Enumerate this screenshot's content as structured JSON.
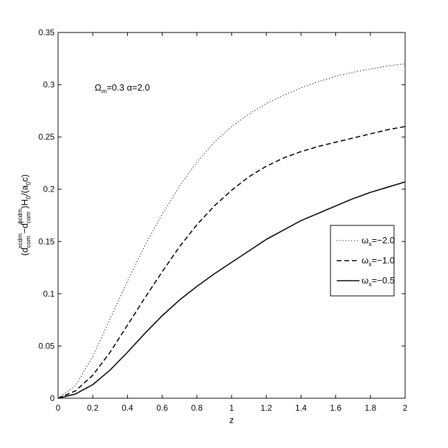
{
  "chart_data": {
    "type": "line",
    "xlabel": "z",
    "ylabel": {
      "parts": [
        {
          "text": "(d",
          "style": "normal"
        },
        {
          "text": "com",
          "style": "sub"
        },
        {
          "text": "xcdm",
          "style": "sup"
        },
        {
          "text": "−d",
          "style": "normal"
        },
        {
          "text": "com",
          "style": "sub"
        },
        {
          "text": "ϕcdm",
          "style": "sup"
        },
        {
          "text": ")H",
          "style": "normal"
        },
        {
          "text": "0",
          "style": "sub"
        },
        {
          "text": "/(a",
          "style": "normal"
        },
        {
          "text": "0",
          "style": "sub"
        },
        {
          "text": "c)",
          "style": "normal"
        }
      ]
    },
    "annotation": {
      "parts": [
        {
          "text": "Ω",
          "style": "normal"
        },
        {
          "text": "m",
          "style": "sub"
        },
        {
          "text": "=0.3  α=2.0",
          "style": "normal"
        }
      ]
    },
    "xlim": [
      0,
      2
    ],
    "ylim": [
      0,
      0.35
    ],
    "xticks": [
      0,
      0.2,
      0.4,
      0.6,
      0.8,
      1,
      1.2,
      1.4,
      1.6,
      1.8,
      2
    ],
    "xtick_labels": [
      "0",
      "0.2",
      "0.4",
      "0.6",
      "0.8",
      "1",
      "1.2",
      "1.4",
      "1.6",
      "1.8",
      "2"
    ],
    "yticks": [
      0,
      0.05,
      0.1,
      0.15,
      0.2,
      0.25,
      0.3,
      0.35
    ],
    "ytick_labels": [
      "0",
      "0.05",
      "0.1",
      "0.15",
      "0.2",
      "0.25",
      "0.3",
      "0.35"
    ],
    "grid": false,
    "legend_position": "center-right",
    "x": [
      0,
      0.1,
      0.2,
      0.3,
      0.4,
      0.5,
      0.6,
      0.7,
      0.8,
      0.9,
      1.0,
      1.1,
      1.2,
      1.3,
      1.4,
      1.5,
      1.6,
      1.7,
      1.8,
      1.9,
      2.0
    ],
    "series": [
      {
        "legend": {
          "base": "ω",
          "sub": "x",
          "rest": "=−2.0"
        },
        "line_style": "dotted",
        "values": [
          0,
          0.012,
          0.04,
          0.076,
          0.112,
          0.146,
          0.176,
          0.203,
          0.226,
          0.245,
          0.26,
          0.272,
          0.282,
          0.29,
          0.297,
          0.303,
          0.308,
          0.312,
          0.315,
          0.318,
          0.32
        ]
      },
      {
        "legend": {
          "base": "ω",
          "sub": "x",
          "rest": "=−1.0"
        },
        "line_style": "dashed",
        "values": [
          0,
          0.007,
          0.022,
          0.044,
          0.07,
          0.096,
          0.121,
          0.145,
          0.166,
          0.184,
          0.199,
          0.212,
          0.222,
          0.23,
          0.236,
          0.241,
          0.245,
          0.249,
          0.253,
          0.257,
          0.26
        ]
      },
      {
        "legend": {
          "base": "ω",
          "sub": "x",
          "rest": "=−0.5"
        },
        "line_style": "solid",
        "values": [
          0,
          0.004,
          0.013,
          0.027,
          0.044,
          0.062,
          0.079,
          0.094,
          0.107,
          0.119,
          0.13,
          0.141,
          0.152,
          0.161,
          0.17,
          0.177,
          0.184,
          0.191,
          0.197,
          0.202,
          0.207
        ]
      }
    ]
  }
}
